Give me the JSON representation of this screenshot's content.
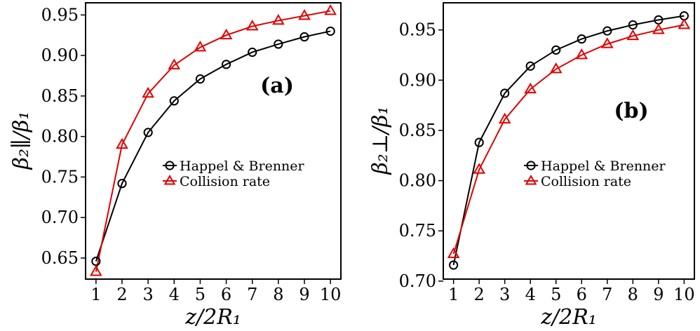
{
  "chart_data": [
    {
      "type": "line",
      "panel_label": "(a)",
      "xlabel": "z/2R₁",
      "ylabel": "β₂∥/β₁",
      "x": [
        1,
        2,
        3,
        4,
        5,
        6,
        7,
        8,
        9,
        10
      ],
      "xticks": [
        "1",
        "2",
        "3",
        "4",
        "5",
        "6",
        "7",
        "8",
        "9",
        "10"
      ],
      "yticks": [
        "0.65",
        "0.70",
        "0.75",
        "0.80",
        "0.85",
        "0.90",
        "0.95"
      ],
      "ytick_values": [
        0.65,
        0.7,
        0.75,
        0.8,
        0.85,
        0.9,
        0.95
      ],
      "xlim": [
        0.6,
        10.4
      ],
      "ylim": [
        0.624,
        0.965
      ],
      "grid": false,
      "legend_position": "center-right",
      "series": [
        {
          "name": "Happel & Brenner",
          "marker": "circle",
          "color": "#000000",
          "values": [
            0.646,
            0.742,
            0.805,
            0.844,
            0.871,
            0.889,
            0.904,
            0.914,
            0.923,
            0.93
          ]
        },
        {
          "name": "Collision rate",
          "marker": "triangle",
          "color": "#e00000",
          "values": [
            0.633,
            0.79,
            0.853,
            0.888,
            0.91,
            0.925,
            0.936,
            0.943,
            0.949,
            0.955
          ]
        }
      ]
    },
    {
      "type": "line",
      "panel_label": "(b)",
      "xlabel": "z/2R₁",
      "ylabel": "β₂⊥/β₁",
      "x": [
        1,
        2,
        3,
        4,
        5,
        6,
        7,
        8,
        9,
        10
      ],
      "xticks": [
        "1",
        "2",
        "3",
        "4",
        "5",
        "6",
        "7",
        "8",
        "9",
        "10"
      ],
      "yticks": [
        "0.70",
        "0.75",
        "0.80",
        "0.85",
        "0.90",
        "0.95"
      ],
      "ytick_values": [
        0.7,
        0.75,
        0.8,
        0.85,
        0.9,
        0.95
      ],
      "xlim": [
        0.6,
        10.4
      ],
      "ylim": [
        0.702,
        0.977
      ],
      "grid": false,
      "legend_position": "center-right",
      "series": [
        {
          "name": "Happel & Brenner",
          "marker": "circle",
          "color": "#000000",
          "values": [
            0.716,
            0.838,
            0.887,
            0.914,
            0.93,
            0.941,
            0.949,
            0.955,
            0.96,
            0.964
          ]
        },
        {
          "name": "Collision rate",
          "marker": "triangle",
          "color": "#e00000",
          "values": [
            0.727,
            0.811,
            0.861,
            0.891,
            0.911,
            0.925,
            0.936,
            0.944,
            0.95,
            0.955
          ]
        }
      ]
    }
  ]
}
